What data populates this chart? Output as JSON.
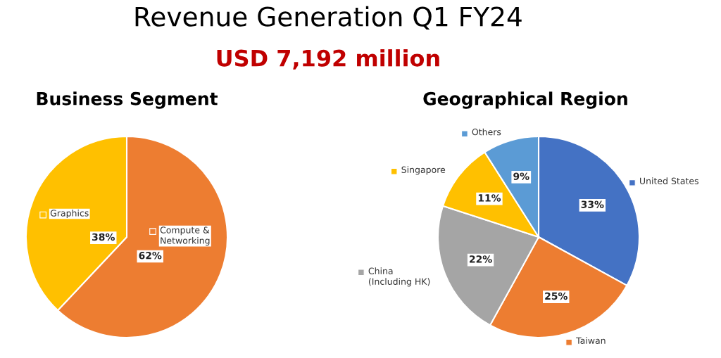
{
  "chart_data": [
    {
      "type": "other",
      "title": "Revenue Generation Q1 FY24",
      "subtitle": "USD 7,192 million"
    },
    {
      "type": "pie",
      "title": "Business Segment",
      "categories": [
        "Compute &\nNetworking",
        "Graphics"
      ],
      "values": [
        62,
        38
      ],
      "colors": [
        "#ed7d31",
        "#ffc000"
      ],
      "value_labels": [
        "62%",
        "38%"
      ],
      "legend": "center"
    },
    {
      "type": "pie",
      "title": "Geographical Region",
      "categories": [
        "United States",
        "Taiwan",
        "China\n(Including HK)",
        "Singapore",
        "Others"
      ],
      "values": [
        33,
        25,
        22,
        11,
        9
      ],
      "colors": [
        "#4472c4",
        "#ed7d31",
        "#a5a5a5",
        "#ffc000",
        "#5b9bd5"
      ],
      "value_labels": [
        "33%",
        "25%",
        "22%",
        "11%",
        "9%"
      ],
      "legend": "top left"
    }
  ]
}
